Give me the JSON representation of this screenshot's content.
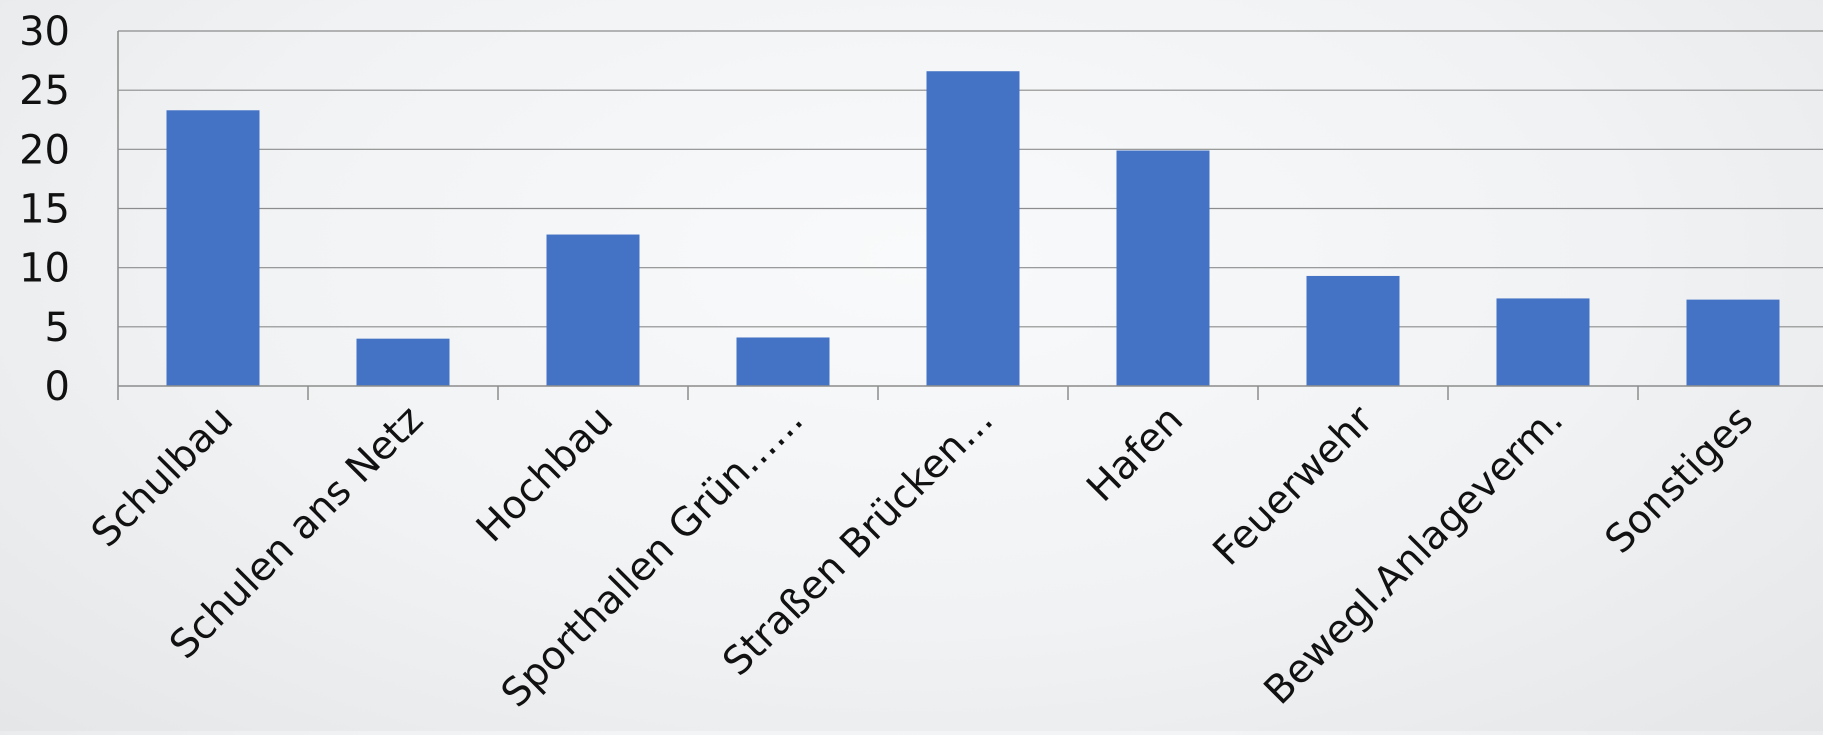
{
  "chart_data": {
    "type": "bar",
    "title": "",
    "xlabel": "",
    "ylabel": "",
    "categories": [
      "Schulbau",
      "Schulen ans Netz",
      "Hochbau",
      "Sporthallen Grün......",
      "Straßen Brücken...",
      "Hafen",
      "Feuerwehr",
      "Bewegl.Anlageverm.",
      "Sonstiges"
    ],
    "values": [
      23.3,
      4.0,
      12.8,
      4.1,
      26.6,
      19.9,
      9.3,
      7.4,
      7.3
    ],
    "ylim": [
      0,
      30
    ],
    "yticks": [
      0,
      5,
      10,
      15,
      20,
      25,
      30
    ],
    "grid": true,
    "legend": "none",
    "bar_color": "#4472C4",
    "grid_color": "#8c8c8c"
  }
}
